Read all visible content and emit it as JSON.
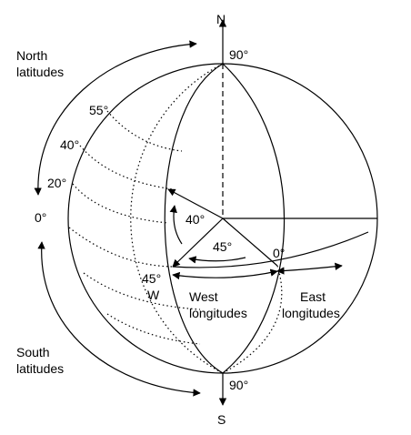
{
  "labels": {
    "north": "N",
    "south": "S",
    "north_latitudes_line1": "North",
    "north_latitudes_line2": "latitudes",
    "south_latitudes_line1": "South",
    "south_latitudes_line2": "latitudes",
    "lat_55": "55°",
    "lat_40": "40°",
    "lat_20": "20°",
    "lat_0": "0°",
    "pole_top": "90°",
    "pole_bottom": "90°",
    "angle_40": "40°",
    "angle_45": "45°",
    "prime_0": "0°",
    "west_45_line1": "45°",
    "west_45_line2": "W",
    "west_longitudes_line1": "West",
    "west_longitudes_line2": "longitudes",
    "east_longitudes_line1": "East",
    "east_longitudes_line2": "longitudes"
  },
  "colors": {
    "stroke": "#000000",
    "background": "#ffffff"
  }
}
